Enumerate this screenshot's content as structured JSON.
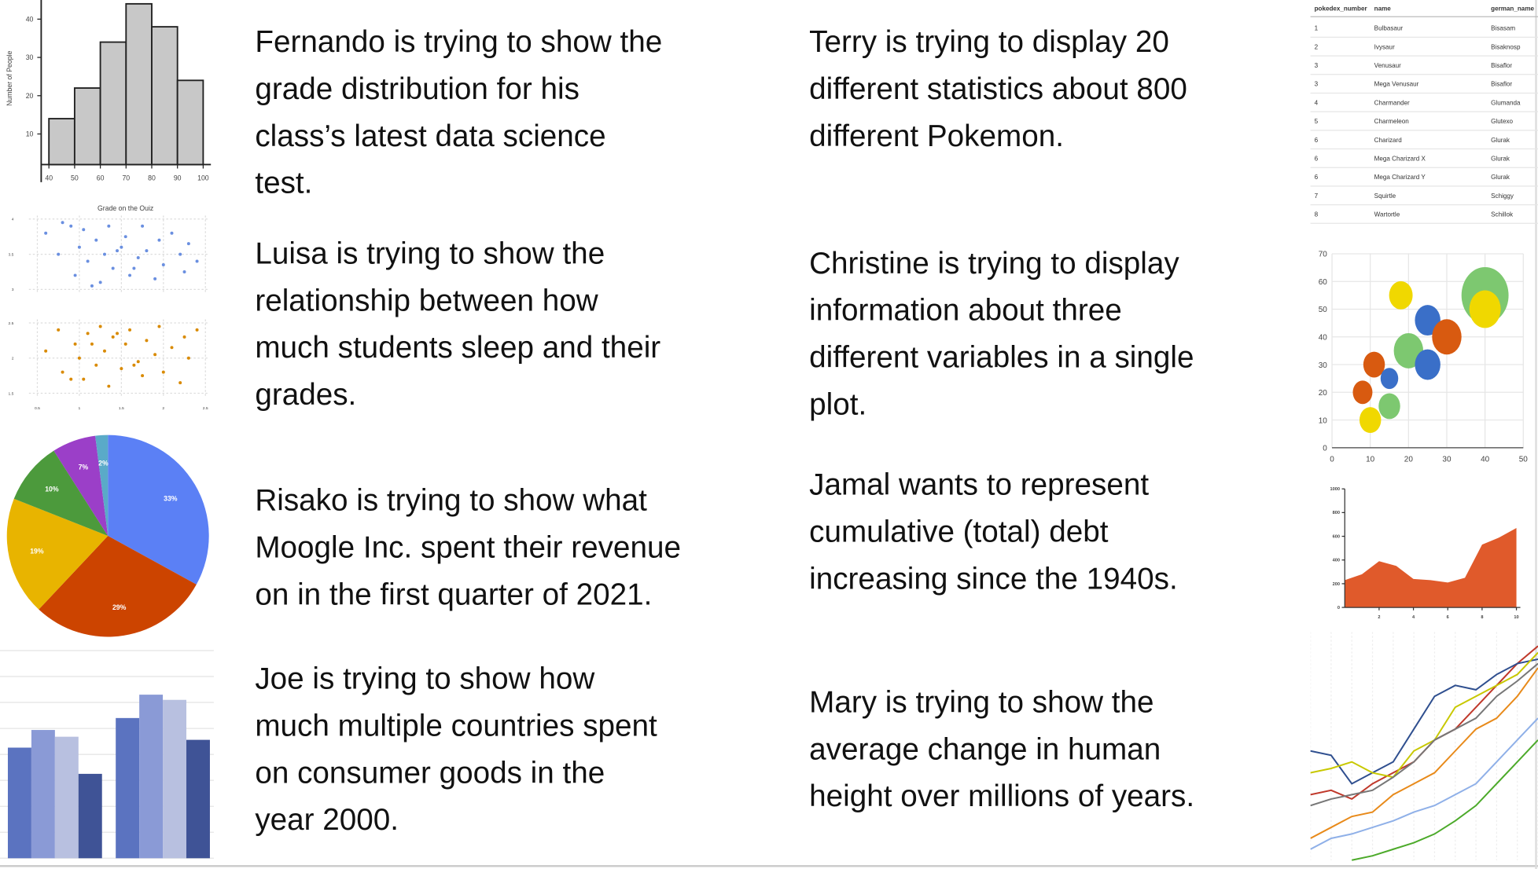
{
  "paragraphs": [
    {
      "lines": [
        "Fernando is trying to show the",
        "grade distribution for his",
        "class’s latest data science",
        "test."
      ]
    },
    {
      "lines": [
        "Luisa is trying to show the",
        "relationship between how",
        "much students sleep and their",
        "grades."
      ]
    },
    {
      "lines": [
        "Risako is trying to show what",
        "Moogle Inc. spent their revenue",
        "on in the first quarter of 2021."
      ]
    },
    {
      "lines": [
        "Joe is trying to show how",
        "much multiple countries spent",
        "on consumer goods in the",
        "year 2000."
      ]
    },
    {
      "lines": [
        "Terry is trying to display 20",
        "different statistics about 800",
        "different Pokemon."
      ]
    },
    {
      "lines": [
        "Christine is trying to display",
        "information about three",
        "different variables in a single",
        "plot."
      ]
    },
    {
      "lines": [
        "Jamal wants to represent",
        "cumulative (total) debt",
        "increasing since the 1940s."
      ]
    },
    {
      "lines": [
        "Mary is trying to show the",
        "average change in human",
        "height over millions of years."
      ]
    }
  ],
  "chart_data": [
    {
      "type": "histogram",
      "ylabel": "Number of People",
      "xlabel": "Grade on the Quiz",
      "bins": [
        40,
        50,
        60,
        70,
        80,
        90,
        100
      ],
      "counts": [
        14,
        22,
        34,
        44,
        38,
        24
      ],
      "color": "#c8c8c8",
      "xlim": [
        37,
        103
      ],
      "ylim": [
        2,
        45
      ],
      "xticks": [
        40,
        50,
        60,
        70,
        80,
        90,
        100
      ],
      "yticks": [
        10,
        20,
        30,
        40
      ]
    },
    {
      "type": "scatter",
      "xlim": [
        0.4,
        2.53
      ],
      "xticks": [
        0.5,
        1,
        1.5,
        2,
        2.5
      ],
      "series": [
        {
          "color": "#6a8fe0",
          "ylim": [
            2.95,
            4.05
          ],
          "yticks": [
            3,
            3.5,
            4
          ],
          "x": [
            0.6,
            0.75,
            0.8,
            0.95,
            1.0,
            1.05,
            1.1,
            1.2,
            1.25,
            1.3,
            1.35,
            1.4,
            1.5,
            1.55,
            1.6,
            1.7,
            1.75,
            1.8,
            1.9,
            1.95,
            2.0,
            2.1,
            2.2,
            2.25,
            2.3,
            2.4,
            0.9,
            1.15,
            1.45,
            1.65
          ],
          "values": [
            3.8,
            3.5,
            3.95,
            3.2,
            3.6,
            3.85,
            3.4,
            3.7,
            3.1,
            3.5,
            3.9,
            3.3,
            3.6,
            3.75,
            3.2,
            3.45,
            3.9,
            3.55,
            3.15,
            3.7,
            3.35,
            3.8,
            3.5,
            3.25,
            3.65,
            3.4,
            3.9,
            3.05,
            3.55,
            3.3
          ]
        },
        {
          "color": "#d98a00",
          "ylim": [
            1.45,
            2.55
          ],
          "yticks": [
            1.5,
            2,
            2.5
          ],
          "x": [
            0.6,
            0.75,
            0.8,
            0.95,
            1.0,
            1.05,
            1.1,
            1.2,
            1.25,
            1.3,
            1.35,
            1.4,
            1.5,
            1.55,
            1.6,
            1.7,
            1.75,
            1.8,
            1.9,
            1.95,
            2.0,
            2.1,
            2.2,
            2.25,
            2.3,
            2.4,
            0.9,
            1.15,
            1.45,
            1.65
          ],
          "values": [
            2.1,
            2.4,
            1.8,
            2.2,
            2.0,
            1.7,
            2.35,
            1.9,
            2.45,
            2.1,
            1.6,
            2.3,
            1.85,
            2.2,
            2.4,
            1.95,
            1.75,
            2.25,
            2.05,
            2.45,
            1.8,
            2.15,
            1.65,
            2.3,
            2.0,
            2.4,
            1.7,
            2.2,
            2.35,
            1.9
          ]
        }
      ]
    },
    {
      "type": "pie",
      "values": [
        33,
        29,
        19,
        10,
        7,
        2
      ],
      "value_labels": [
        "33%",
        "29%",
        "19%",
        "10%",
        "7%",
        "2%"
      ],
      "colors": [
        "#5b80f5",
        "#cc4400",
        "#e8b400",
        "#4c9a3c",
        "#9b3fc8",
        "#5aaac8"
      ]
    },
    {
      "type": "grouped_bar",
      "categories": [
        null,
        null
      ],
      "ylim": [
        0,
        8
      ],
      "grid": true,
      "series": [
        {
          "color": "#5b73c0",
          "values": [
            4.26,
            5.4
          ]
        },
        {
          "color": "#8a9ad6",
          "values": [
            4.94,
            6.3
          ]
        },
        {
          "color": "#b8c0e0",
          "values": [
            4.68,
            6.1
          ]
        },
        {
          "color": "#3f5396",
          "values": [
            3.25,
            4.56
          ]
        }
      ]
    },
    {
      "type": "table",
      "columns": [
        "pokedex_number",
        "name",
        "german_name"
      ],
      "rows": [
        [
          "1",
          "Bulbasaur",
          "Bisasam"
        ],
        [
          "2",
          "Ivysaur",
          "Bisaknosp"
        ],
        [
          "3",
          "Venusaur",
          "Bisaflor"
        ],
        [
          "3",
          "Mega Venusaur",
          "Bisaflor"
        ],
        [
          "4",
          "Charmander",
          "Glumanda"
        ],
        [
          "5",
          "Charmeleon",
          "Glutexo"
        ],
        [
          "6",
          "Charizard",
          "Glurak"
        ],
        [
          "6",
          "Mega Charizard X",
          "Glurak"
        ],
        [
          "6",
          "Mega Charizard Y",
          "Glurak"
        ],
        [
          "7",
          "Squirtle",
          "Schiggy"
        ],
        [
          "8",
          "Wartortle",
          "Schillok"
        ]
      ]
    },
    {
      "type": "bubble",
      "xlim": [
        0,
        50
      ],
      "ylim": [
        0,
        70
      ],
      "xticks": [
        0,
        10,
        20,
        30,
        40,
        50
      ],
      "yticks": [
        0,
        10,
        20,
        30,
        40,
        50,
        60,
        70
      ],
      "grid": true,
      "x": [
        40,
        40,
        25,
        30,
        18,
        20,
        25,
        11,
        15,
        8,
        15,
        10
      ],
      "values": [
        55,
        50,
        46,
        40,
        55,
        35,
        30,
        30,
        25,
        20,
        15,
        10
      ],
      "sizes": [
        24,
        16,
        13,
        15,
        12,
        15,
        13,
        11,
        9,
        10,
        11,
        11
      ],
      "colors": [
        "#7dc870",
        "#f0d800",
        "#3a6fc8",
        "#d85a10",
        "#f0d800",
        "#7dc870",
        "#3a6fc8",
        "#d85a10",
        "#3a6fc8",
        "#d85a10",
        "#7dc870",
        "#f0d800"
      ]
    },
    {
      "type": "area",
      "color": "#e05a2b",
      "xlim": [
        0,
        10
      ],
      "ylim": [
        0,
        1000
      ],
      "xticks": [
        2,
        4,
        6,
        8,
        10
      ],
      "yticks": [
        0,
        200,
        400,
        600,
        800,
        1000
      ],
      "x": [
        0,
        1,
        2,
        3,
        4,
        5,
        6,
        7,
        8,
        9,
        10
      ],
      "values": [
        230,
        280,
        390,
        350,
        240,
        230,
        210,
        250,
        530,
        590,
        670
      ]
    },
    {
      "type": "line",
      "xlim": [
        0,
        11
      ],
      "ylim": [
        0,
        100
      ],
      "x": [
        0,
        1,
        2,
        3,
        4,
        5,
        6,
        7,
        8,
        9,
        10,
        11
      ],
      "series": [
        {
          "color": "#c0392b",
          "values": [
            30,
            32,
            28,
            35,
            40,
            45,
            55,
            60,
            70,
            80,
            90,
            98
          ]
        },
        {
          "color": "#2f4f8f",
          "values": [
            50,
            48,
            35,
            40,
            45,
            60,
            75,
            80,
            78,
            85,
            90,
            92
          ]
        },
        {
          "color": "#c8c800",
          "values": [
            40,
            42,
            45,
            40,
            38,
            50,
            55,
            70,
            75,
            80,
            85,
            95
          ]
        },
        {
          "color": "#777777",
          "values": [
            25,
            28,
            30,
            32,
            38,
            45,
            55,
            60,
            65,
            75,
            82,
            90
          ]
        },
        {
          "color": "#e88a1a",
          "values": [
            10,
            15,
            20,
            22,
            30,
            35,
            40,
            50,
            60,
            65,
            75,
            88
          ]
        },
        {
          "color": "#8fb0e8",
          "values": [
            5,
            10,
            12,
            15,
            18,
            22,
            25,
            30,
            35,
            45,
            55,
            65
          ]
        },
        {
          "color": "#4caa2a",
          "values": [
            null,
            null,
            0,
            2,
            5,
            8,
            12,
            18,
            25,
            35,
            45,
            55
          ]
        }
      ]
    }
  ]
}
